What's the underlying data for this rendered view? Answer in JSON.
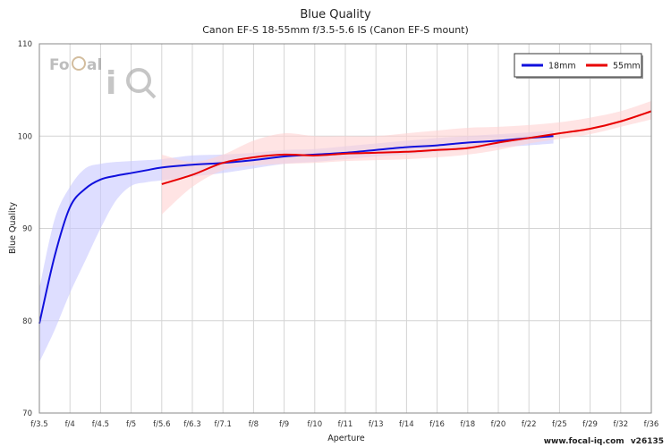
{
  "chart_data": {
    "type": "line",
    "title": "Blue Quality",
    "subtitle": "Canon EF-S 18-55mm f/3.5-5.6 IS (Canon EF-S mount)",
    "xlabel": "Aperture",
    "ylabel": "Blue Quality",
    "categories": [
      "f/3.5",
      "f/4",
      "f/4.5",
      "f/5",
      "f/5.6",
      "f/6.3",
      "f/7.1",
      "f/8",
      "f/9",
      "f/10",
      "f/11",
      "f/13",
      "f/14",
      "f/16",
      "f/18",
      "f/20",
      "f/22",
      "f/25",
      "f/29",
      "f/32",
      "f/36"
    ],
    "yticks": [
      "70",
      "80",
      "90",
      "100",
      "110"
    ],
    "ylim": [
      70,
      110
    ],
    "grid": true,
    "legend_position": "top-right",
    "series": [
      {
        "name": "18mm",
        "color": "#1010dd",
        "band_color": "#c8c8ff",
        "x": [
          0,
          0.5,
          1,
          1.5,
          2,
          2.5,
          3,
          3.5,
          4,
          5,
          6,
          7,
          8,
          9,
          10,
          11,
          12,
          13,
          14,
          15,
          16,
          16.8
        ],
        "values": [
          79.7,
          87.0,
          92.3,
          94.3,
          95.3,
          95.7,
          96.0,
          96.3,
          96.6,
          96.9,
          97.1,
          97.4,
          97.8,
          98.0,
          98.2,
          98.5,
          98.8,
          99.0,
          99.3,
          99.5,
          99.8,
          100.0
        ],
        "band_low": [
          75.5,
          79.0,
          83.0,
          86.5,
          90.0,
          93.0,
          94.6,
          95.0,
          95.2,
          95.6,
          96.0,
          96.5,
          97.0,
          97.2,
          97.5,
          97.8,
          98.0,
          98.3,
          98.6,
          98.8,
          99.0,
          99.2
        ],
        "band_high": [
          83.5,
          91.0,
          94.5,
          96.5,
          97.0,
          97.2,
          97.3,
          97.4,
          97.5,
          97.9,
          98.0,
          98.2,
          98.5,
          98.6,
          98.9,
          99.2,
          99.5,
          99.8,
          100.0,
          100.2,
          100.4,
          100.6
        ]
      },
      {
        "name": "55mm",
        "color": "#e80000",
        "band_color": "#ffd2d2",
        "x": [
          4,
          5,
          6,
          7,
          8,
          9,
          10,
          11,
          12,
          13,
          14,
          15,
          16,
          17,
          18,
          19,
          20
        ],
        "values": [
          94.8,
          95.8,
          97.1,
          97.7,
          98.0,
          97.9,
          98.1,
          98.2,
          98.3,
          98.5,
          98.7,
          99.3,
          99.8,
          100.3,
          100.8,
          101.6,
          102.7
        ],
        "band_low": [
          91.5,
          94.5,
          96.3,
          96.8,
          97.0,
          97.1,
          97.3,
          97.4,
          97.5,
          97.7,
          98.0,
          98.5,
          99.2,
          99.7,
          100.2,
          101.0,
          101.8
        ],
        "band_high": [
          98.0,
          97.2,
          98.0,
          99.5,
          100.3,
          100.0,
          100.0,
          100.0,
          100.3,
          100.6,
          100.9,
          101.0,
          101.2,
          101.5,
          102.0,
          102.7,
          103.8
        ]
      }
    ]
  },
  "watermark": {
    "logo_text": "FoCal iQ",
    "site": "www.focal-iq.com",
    "version": "v26135"
  }
}
